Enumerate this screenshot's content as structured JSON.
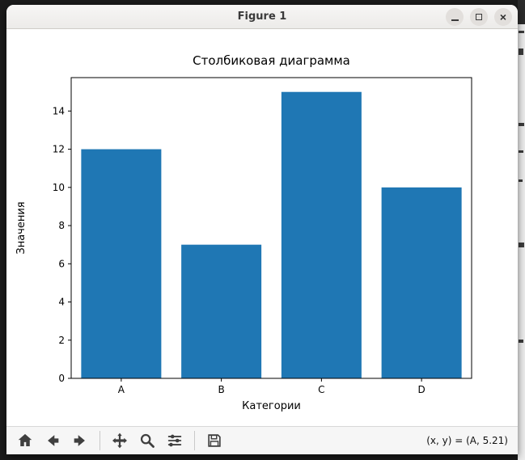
{
  "window": {
    "title": "Figure 1",
    "close_glyph": "×",
    "controls": [
      "minimize-icon",
      "maximize-icon",
      "close-icon"
    ]
  },
  "chart_data": {
    "type": "bar",
    "categories": [
      "A",
      "B",
      "C",
      "D"
    ],
    "values": [
      12,
      7,
      15,
      10
    ],
    "title": "Столбиковая диаграмма",
    "xlabel": "Категории",
    "ylabel": "Значения",
    "ylim": [
      0,
      15.75
    ],
    "yticks": [
      0,
      2,
      4,
      6,
      8,
      10,
      12,
      14
    ],
    "bar_color": "#1f77b4",
    "bar_rel_width": 0.8,
    "grid": false,
    "legend": "none"
  },
  "toolbar": {
    "icons": [
      "home-icon",
      "back-icon",
      "forward-icon",
      "pan-icon",
      "zoom-icon",
      "configure-subplots-icon",
      "save-icon"
    ],
    "status": "(x, y) = (A, 5.21)"
  }
}
